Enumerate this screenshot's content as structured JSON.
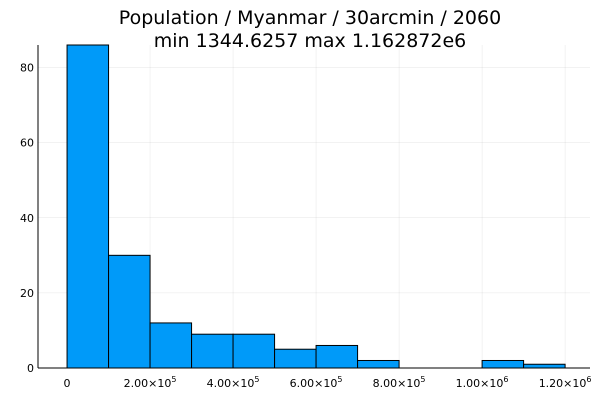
{
  "chart_data": {
    "type": "bar",
    "title": "Population / Myanmar / 30arcmin / 2060",
    "subtitle": "min 1344.6257  max 1.162872e6",
    "bar_color": "#009af9",
    "bin_width": 100000,
    "bins": [
      {
        "start": 0,
        "end": 100000,
        "count": 86
      },
      {
        "start": 100000,
        "end": 200000,
        "count": 30
      },
      {
        "start": 200000,
        "end": 300000,
        "count": 12
      },
      {
        "start": 300000,
        "end": 400000,
        "count": 9
      },
      {
        "start": 400000,
        "end": 500000,
        "count": 9
      },
      {
        "start": 500000,
        "end": 600000,
        "count": 5
      },
      {
        "start": 600000,
        "end": 700000,
        "count": 6
      },
      {
        "start": 700000,
        "end": 800000,
        "count": 2
      },
      {
        "start": 800000,
        "end": 900000,
        "count": 0
      },
      {
        "start": 900000,
        "end": 1000000,
        "count": 0
      },
      {
        "start": 1000000,
        "end": 1100000,
        "count": 2
      },
      {
        "start": 1100000,
        "end": 1200000,
        "count": 1
      }
    ],
    "xlim": [
      -70000,
      1260000
    ],
    "ylim": [
      0,
      86
    ],
    "x_ticks": [
      {
        "value": 0,
        "mantissa": "0",
        "exp": ""
      },
      {
        "value": 200000,
        "mantissa": "2.00",
        "exp": "5"
      },
      {
        "value": 400000,
        "mantissa": "4.00",
        "exp": "5"
      },
      {
        "value": 600000,
        "mantissa": "6.00",
        "exp": "5"
      },
      {
        "value": 800000,
        "mantissa": "8.00",
        "exp": "5"
      },
      {
        "value": 1000000,
        "mantissa": "1.00",
        "exp": "6"
      },
      {
        "value": 1200000,
        "mantissa": "1.20",
        "exp": "6"
      }
    ],
    "y_ticks": [
      0,
      20,
      40,
      60,
      80
    ],
    "grid": true,
    "legend": "none"
  }
}
